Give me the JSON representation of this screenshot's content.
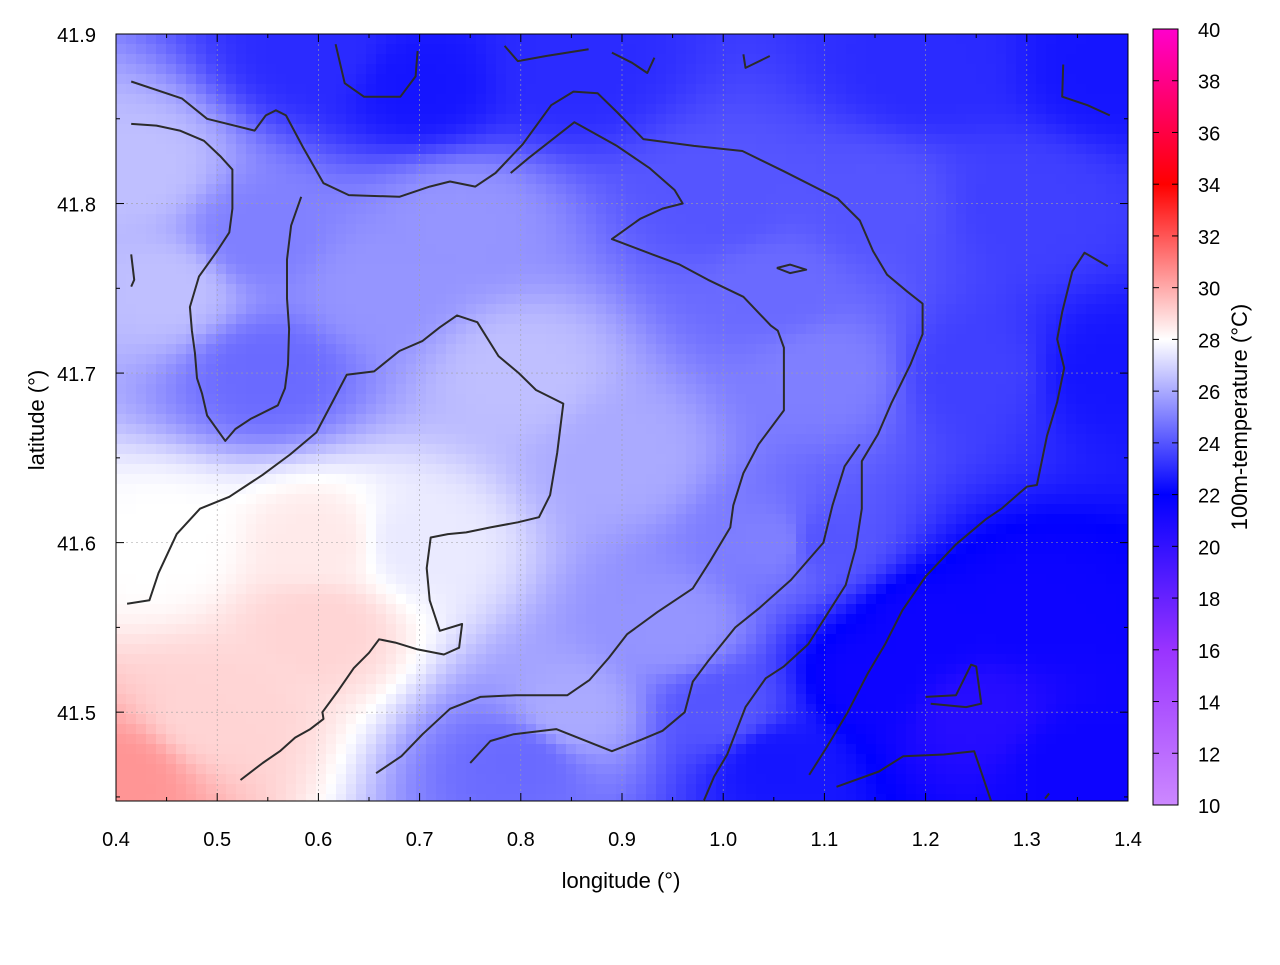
{
  "chart_data": {
    "type": "heatmap",
    "xlabel": "longitude (°)",
    "ylabel": "latitude (°)",
    "colorbar_label": "100m-temperature (°C)",
    "xlim": [
      0.4,
      1.4
    ],
    "ylim": [
      41.45,
      41.9
    ],
    "x_ticks": [
      0.4,
      0.5,
      0.6,
      0.7,
      0.8,
      0.9,
      1.0,
      1.1,
      1.2,
      1.3,
      1.4
    ],
    "x_tick_labels": [
      "0.4",
      "0.5",
      "0.6",
      "0.7",
      "0.8",
      "0.9",
      "1.0",
      "1.1",
      "1.2",
      "1.3",
      "1.4"
    ],
    "y_ticks": [
      41.5,
      41.6,
      41.7,
      41.8,
      41.9
    ],
    "y_tick_labels": [
      "41.5",
      "41.6",
      "41.7",
      "41.8",
      "41.9"
    ],
    "colorbar_range": [
      10,
      40
    ],
    "colorbar_ticks": [
      10,
      12,
      14,
      16,
      18,
      20,
      22,
      24,
      26,
      28,
      30,
      32,
      34,
      36,
      38,
      40
    ],
    "colorbar_tick_labels": [
      "10",
      "12",
      "14",
      "16",
      "18",
      "20",
      "22",
      "24",
      "26",
      "28",
      "30",
      "32",
      "34",
      "36",
      "38",
      "40"
    ],
    "colorbar_colors": [
      "#cc88ff",
      "#9933ff",
      "#0000ff",
      "#ffffff",
      "#ff0000",
      "#ff00cc"
    ],
    "grid": true,
    "contour_color": "#2b2b2b",
    "contours": [
      [
        [
          0.415,
          41.872
        ],
        [
          0.465,
          41.862
        ],
        [
          0.49,
          41.85
        ],
        [
          0.537,
          41.843
        ],
        [
          0.548,
          41.852
        ],
        [
          0.558,
          41.855
        ],
        [
          0.568,
          41.852
        ],
        [
          0.585,
          41.833
        ],
        [
          0.605,
          41.812
        ],
        [
          0.63,
          41.805
        ],
        [
          0.68,
          41.804
        ],
        [
          0.71,
          41.81
        ],
        [
          0.73,
          41.813
        ],
        [
          0.755,
          41.81
        ],
        [
          0.775,
          41.818
        ],
        [
          0.802,
          41.835
        ],
        [
          0.83,
          41.858
        ],
        [
          0.852,
          41.866
        ],
        [
          0.876,
          41.865
        ],
        [
          0.895,
          41.854
        ],
        [
          0.921,
          41.838
        ],
        [
          0.971,
          41.834
        ],
        [
          1.019,
          41.831
        ],
        [
          1.06,
          41.819
        ],
        [
          1.113,
          41.803
        ],
        [
          1.135,
          41.79
        ],
        [
          1.148,
          41.772
        ],
        [
          1.162,
          41.758
        ],
        [
          1.182,
          41.748
        ],
        [
          1.197,
          41.741
        ],
        [
          1.197,
          41.723
        ],
        [
          1.185,
          41.705
        ],
        [
          1.166,
          41.682
        ],
        [
          1.153,
          41.664
        ],
        [
          1.137,
          41.648
        ],
        [
          1.137,
          41.62
        ],
        [
          1.131,
          41.597
        ],
        [
          1.121,
          41.575
        ],
        [
          1.103,
          41.558
        ],
        [
          1.084,
          41.54
        ],
        [
          1.06,
          41.527
        ],
        [
          1.042,
          41.52
        ],
        [
          1.022,
          41.503
        ],
        [
          1.004,
          41.475
        ],
        [
          0.991,
          41.462
        ],
        [
          0.981,
          41.448
        ]
      ],
      [
        [
          0.415,
          41.847
        ],
        [
          0.44,
          41.846
        ],
        [
          0.463,
          41.843
        ],
        [
          0.487,
          41.837
        ],
        [
          0.503,
          41.828
        ],
        [
          0.515,
          41.82
        ],
        [
          0.515,
          41.797
        ],
        [
          0.512,
          41.783
        ],
        [
          0.5,
          41.772
        ],
        [
          0.482,
          41.757
        ],
        [
          0.473,
          41.739
        ],
        [
          0.475,
          41.725
        ],
        [
          0.478,
          41.712
        ],
        [
          0.48,
          41.697
        ],
        [
          0.485,
          41.688
        ],
        [
          0.49,
          41.675
        ],
        [
          0.508,
          41.66
        ],
        [
          0.518,
          41.667
        ],
        [
          0.533,
          41.673
        ],
        [
          0.56,
          41.681
        ],
        [
          0.567,
          41.691
        ],
        [
          0.57,
          41.705
        ],
        [
          0.571,
          41.726
        ],
        [
          0.569,
          41.744
        ],
        [
          0.569,
          41.767
        ],
        [
          0.573,
          41.787
        ],
        [
          0.583,
          41.804
        ]
      ],
      [
        [
          0.411,
          41.564
        ],
        [
          0.433,
          41.566
        ],
        [
          0.442,
          41.582
        ],
        [
          0.46,
          41.605
        ],
        [
          0.483,
          41.62
        ],
        [
          0.512,
          41.627
        ],
        [
          0.545,
          41.64
        ],
        [
          0.572,
          41.652
        ],
        [
          0.598,
          41.665
        ],
        [
          0.613,
          41.682
        ],
        [
          0.628,
          41.699
        ],
        [
          0.655,
          41.701
        ],
        [
          0.68,
          41.713
        ],
        [
          0.703,
          41.719
        ],
        [
          0.72,
          41.727
        ],
        [
          0.737,
          41.734
        ],
        [
          0.757,
          41.73
        ],
        [
          0.778,
          41.71
        ],
        [
          0.798,
          41.7
        ],
        [
          0.815,
          41.69
        ],
        [
          0.842,
          41.682
        ],
        [
          0.836,
          41.653
        ],
        [
          0.829,
          41.628
        ],
        [
          0.818,
          41.615
        ],
        [
          0.797,
          41.612
        ],
        [
          0.77,
          41.609
        ],
        [
          0.746,
          41.606
        ],
        [
          0.728,
          41.605
        ],
        [
          0.711,
          41.603
        ],
        [
          0.707,
          41.585
        ],
        [
          0.71,
          41.566
        ],
        [
          0.72,
          41.548
        ],
        [
          0.742,
          41.552
        ],
        [
          0.739,
          41.538
        ],
        [
          0.724,
          41.534
        ],
        [
          0.698,
          41.537
        ],
        [
          0.676,
          41.541
        ],
        [
          0.66,
          41.543
        ],
        [
          0.65,
          41.535
        ],
        [
          0.635,
          41.526
        ],
        [
          0.62,
          41.513
        ],
        [
          0.604,
          41.5
        ],
        [
          0.605,
          41.496
        ],
        [
          0.592,
          41.49
        ],
        [
          0.577,
          41.485
        ],
        [
          0.562,
          41.477
        ],
        [
          0.545,
          41.47
        ],
        [
          0.523,
          41.46
        ]
      ],
      [
        [
          0.657,
          41.464
        ],
        [
          0.682,
          41.474
        ],
        [
          0.703,
          41.487
        ],
        [
          0.73,
          41.502
        ],
        [
          0.76,
          41.509
        ],
        [
          0.795,
          41.51
        ],
        [
          0.846,
          41.51
        ],
        [
          0.868,
          41.519
        ],
        [
          0.887,
          41.532
        ],
        [
          0.905,
          41.546
        ],
        [
          0.935,
          41.559
        ],
        [
          0.97,
          41.573
        ],
        [
          0.987,
          41.589
        ],
        [
          1.007,
          41.609
        ],
        [
          1.01,
          41.622
        ],
        [
          1.02,
          41.641
        ],
        [
          1.035,
          41.658
        ],
        [
          1.06,
          41.678
        ],
        [
          1.06,
          41.715
        ],
        [
          1.054,
          41.725
        ],
        [
          1.047,
          41.728
        ],
        [
          1.02,
          41.745
        ],
        [
          0.985,
          41.755
        ],
        [
          0.957,
          41.764
        ],
        [
          0.93,
          41.77
        ],
        [
          0.89,
          41.779
        ],
        [
          0.918,
          41.791
        ],
        [
          0.94,
          41.797
        ],
        [
          0.96,
          41.8
        ],
        [
          0.952,
          41.808
        ],
        [
          0.927,
          41.821
        ],
        [
          0.895,
          41.834
        ],
        [
          0.853,
          41.848
        ],
        [
          0.808,
          41.827
        ],
        [
          0.79,
          41.818
        ]
      ],
      [
        [
          0.75,
          41.47
        ],
        [
          0.77,
          41.483
        ],
        [
          0.793,
          41.487
        ],
        [
          0.835,
          41.49
        ],
        [
          0.89,
          41.477
        ],
        [
          0.92,
          41.484
        ],
        [
          0.94,
          41.489
        ],
        [
          0.962,
          41.5
        ],
        [
          0.97,
          41.518
        ],
        [
          0.985,
          41.53
        ],
        [
          1.012,
          41.55
        ],
        [
          1.035,
          41.561
        ],
        [
          1.067,
          41.578
        ],
        [
          1.099,
          41.6
        ],
        [
          1.108,
          41.622
        ],
        [
          1.12,
          41.645
        ],
        [
          1.135,
          41.658
        ]
      ],
      [
        [
          1.053,
          41.762
        ],
        [
          1.066,
          41.764
        ],
        [
          1.082,
          41.761
        ],
        [
          1.066,
          41.759
        ],
        [
          1.053,
          41.762
        ]
      ],
      [
        [
          1.2,
          41.509
        ],
        [
          1.23,
          41.51
        ],
        [
          1.245,
          41.528
        ],
        [
          1.25,
          41.527
        ],
        [
          1.255,
          41.505
        ],
        [
          1.24,
          41.503
        ],
        [
          1.205,
          41.505
        ]
      ],
      [
        [
          1.112,
          41.456
        ],
        [
          1.154,
          41.465
        ],
        [
          1.178,
          41.474
        ],
        [
          1.218,
          41.475
        ],
        [
          1.248,
          41.477
        ],
        [
          1.265,
          41.447
        ]
      ],
      [
        [
          1.318,
          41.449
        ],
        [
          1.322,
          41.452
        ]
      ],
      [
        [
          0.617,
          41.894
        ],
        [
          0.626,
          41.871
        ],
        [
          0.645,
          41.863
        ],
        [
          0.681,
          41.863
        ],
        [
          0.696,
          41.875
        ],
        [
          0.698,
          41.89
        ]
      ],
      [
        [
          0.784,
          41.893
        ],
        [
          0.797,
          41.884
        ],
        [
          0.825,
          41.887
        ],
        [
          0.867,
          41.891
        ]
      ],
      [
        [
          0.89,
          41.889
        ],
        [
          0.91,
          41.883
        ],
        [
          0.925,
          41.877
        ],
        [
          0.932,
          41.886
        ]
      ],
      [
        [
          1.02,
          41.888
        ],
        [
          1.022,
          41.88
        ],
        [
          1.046,
          41.887
        ]
      ],
      [
        [
          1.336,
          41.882
        ],
        [
          1.335,
          41.863
        ],
        [
          1.36,
          41.858
        ],
        [
          1.382,
          41.852
        ]
      ],
      [
        [
          0.415,
          41.77
        ],
        [
          0.418,
          41.755
        ],
        [
          0.415,
          41.751
        ]
      ],
      [
        [
          1.38,
          41.763
        ],
        [
          1.357,
          41.771
        ],
        [
          1.345,
          41.76
        ],
        [
          1.335,
          41.736
        ],
        [
          1.33,
          41.72
        ],
        [
          1.337,
          41.703
        ],
        [
          1.33,
          41.683
        ],
        [
          1.32,
          41.663
        ],
        [
          1.31,
          41.634
        ],
        [
          1.3,
          41.633
        ],
        [
          1.275,
          41.62
        ],
        [
          1.26,
          41.614
        ],
        [
          1.23,
          41.599
        ],
        [
          1.2,
          41.58
        ],
        [
          1.177,
          41.56
        ],
        [
          1.16,
          41.54
        ],
        [
          1.143,
          41.523
        ],
        [
          1.123,
          41.5
        ],
        [
          1.103,
          41.48
        ],
        [
          1.085,
          41.463
        ]
      ]
    ],
    "field_anchors": [
      [
        0.4,
        41.46,
        30.5
      ],
      [
        0.5,
        41.5,
        29
      ],
      [
        0.45,
        41.6,
        28
      ],
      [
        0.6,
        41.6,
        28.5
      ],
      [
        0.6,
        41.55,
        29
      ],
      [
        0.7,
        41.6,
        27.5
      ],
      [
        0.45,
        41.75,
        26.5
      ],
      [
        0.42,
        41.82,
        26.5
      ],
      [
        0.55,
        41.7,
        24.5
      ],
      [
        0.54,
        41.78,
        25
      ],
      [
        0.66,
        41.75,
        25.5
      ],
      [
        0.74,
        41.79,
        25.5
      ],
      [
        0.8,
        41.7,
        26.5
      ],
      [
        0.9,
        41.65,
        26
      ],
      [
        0.95,
        41.55,
        25.5
      ],
      [
        0.85,
        41.5,
        26
      ],
      [
        0.8,
        41.47,
        24.5
      ],
      [
        0.7,
        41.87,
        22.5
      ],
      [
        0.6,
        41.89,
        23
      ],
      [
        0.85,
        41.88,
        23
      ],
      [
        1.0,
        41.8,
        24
      ],
      [
        1.05,
        41.75,
        24.5
      ],
      [
        1.1,
        41.7,
        25
      ],
      [
        1.05,
        41.6,
        25
      ],
      [
        1.1,
        41.6,
        24
      ],
      [
        1.0,
        41.5,
        24
      ],
      [
        1.05,
        41.47,
        22.5
      ],
      [
        1.15,
        41.52,
        21.5
      ],
      [
        1.25,
        41.5,
        20.5
      ],
      [
        1.2,
        41.55,
        21.5
      ],
      [
        1.3,
        41.56,
        21.5
      ],
      [
        1.35,
        41.47,
        21.5
      ],
      [
        1.25,
        41.7,
        23.5
      ],
      [
        1.3,
        41.8,
        23.5
      ],
      [
        1.2,
        41.88,
        23
      ],
      [
        1.38,
        41.88,
        22.5
      ],
      [
        1.38,
        41.7,
        22.5
      ],
      [
        1.15,
        41.8,
        24
      ]
    ]
  }
}
